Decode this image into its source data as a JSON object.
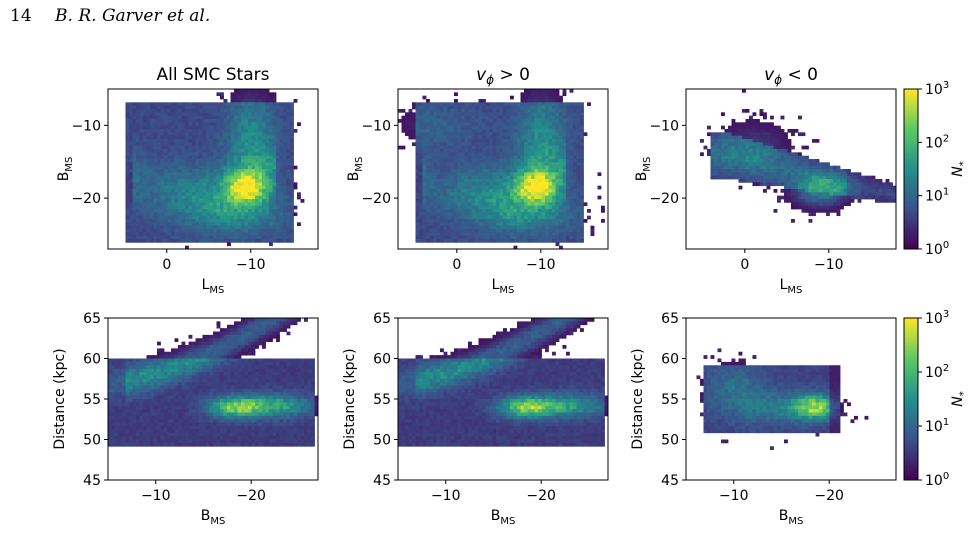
{
  "header": {
    "page_number": "14",
    "authors": "B. R. Garver et al."
  },
  "colors": {
    "cmap": [
      "#440154",
      "#3b528b",
      "#21908d",
      "#5dc963",
      "#fde725"
    ]
  },
  "chart_data": [
    {
      "type": "heatmap",
      "title": "All SMC Stars",
      "xlabel": "L",
      "xlabel_sub": "MS",
      "ylabel": "B",
      "ylabel_sub": "MS",
      "xlim": [
        7,
        -18
      ],
      "ylim": [
        -27,
        -5
      ],
      "xticks": [
        0,
        -10
      ],
      "xtick_labels": [
        "0",
        "−10"
      ],
      "yticks": [
        -10,
        -20
      ],
      "ytick_labels": [
        "−10",
        "−20"
      ]
    },
    {
      "type": "heatmap",
      "title": "vϕ > 0",
      "title_sym": "v",
      "title_sub": "ϕ",
      "title_rest": " > 0",
      "xlabel": "L",
      "xlabel_sub": "MS",
      "ylabel": "B",
      "ylabel_sub": "MS",
      "xlim": [
        7,
        -18
      ],
      "ylim": [
        -27,
        -5
      ],
      "xticks": [
        0,
        -10
      ],
      "xtick_labels": [
        "0",
        "−10"
      ],
      "yticks": [
        -10,
        -20
      ],
      "ytick_labels": [
        "−10",
        "−20"
      ]
    },
    {
      "type": "heatmap",
      "title": "vϕ < 0",
      "title_sym": "v",
      "title_sub": "ϕ",
      "title_rest": " < 0",
      "xlabel": "L",
      "xlabel_sub": "MS",
      "ylabel": "B",
      "ylabel_sub": "MS",
      "xlim": [
        7,
        -18
      ],
      "ylim": [
        -27,
        -5
      ],
      "xticks": [
        0,
        -10
      ],
      "xtick_labels": [
        "0",
        "−10"
      ],
      "yticks": [
        -10,
        -20
      ],
      "ytick_labels": [
        "−10",
        "−20"
      ]
    },
    {
      "type": "heatmap",
      "xlabel": "B",
      "xlabel_sub": "MS",
      "ylabel": "Distance (kpc)",
      "xlim": [
        -5,
        -27
      ],
      "ylim": [
        45,
        65
      ],
      "xticks": [
        -10,
        -20
      ],
      "xtick_labels": [
        "−10",
        "−20"
      ],
      "yticks": [
        45,
        50,
        55,
        60,
        65
      ],
      "ytick_labels": [
        "45",
        "50",
        "55",
        "60",
        "65"
      ]
    },
    {
      "type": "heatmap",
      "xlabel": "B",
      "xlabel_sub": "MS",
      "ylabel": "Distance (kpc)",
      "xlim": [
        -5,
        -27
      ],
      "ylim": [
        45,
        65
      ],
      "xticks": [
        -10,
        -20
      ],
      "xtick_labels": [
        "−10",
        "−20"
      ],
      "yticks": [
        45,
        50,
        55,
        60,
        65
      ],
      "ytick_labels": [
        "45",
        "50",
        "55",
        "60",
        "65"
      ]
    },
    {
      "type": "heatmap",
      "xlabel": "B",
      "xlabel_sub": "MS",
      "ylabel": "Distance (kpc)",
      "xlim": [
        -5,
        -27
      ],
      "ylim": [
        45,
        65
      ],
      "xticks": [
        -10,
        -20
      ],
      "xtick_labels": [
        "−10",
        "−20"
      ],
      "yticks": [
        45,
        50,
        55,
        60,
        65
      ],
      "ytick_labels": [
        "45",
        "50",
        "55",
        "60",
        "65"
      ]
    }
  ],
  "colorbars": [
    {
      "label": "N",
      "label_sub": "*",
      "scale": "log",
      "ticks": [
        {
          "base": "10",
          "exp": "3"
        },
        {
          "base": "10",
          "exp": "2"
        },
        {
          "base": "10",
          "exp": "1"
        },
        {
          "base": "10",
          "exp": "0"
        }
      ]
    },
    {
      "label": "N",
      "label_sub": "*",
      "scale": "log",
      "ticks": [
        {
          "base": "10",
          "exp": "3"
        },
        {
          "base": "10",
          "exp": "2"
        },
        {
          "base": "10",
          "exp": "1"
        },
        {
          "base": "10",
          "exp": "0"
        }
      ]
    }
  ]
}
